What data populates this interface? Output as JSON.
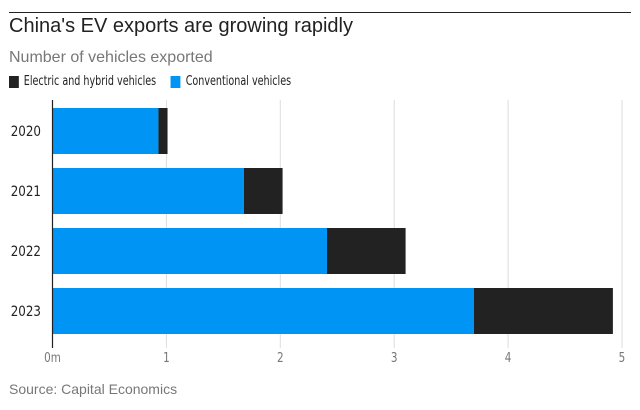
{
  "chart_data": {
    "type": "bar",
    "orientation": "horizontal",
    "stacked": true,
    "title": "China's EV exports are growing rapidly",
    "subtitle": "Number of vehicles exported",
    "categories": [
      "2020",
      "2021",
      "2022",
      "2023"
    ],
    "series": [
      {
        "name": "Conventional vehicles",
        "color": "#0094f5",
        "values": [
          0.93,
          1.68,
          2.41,
          3.7
        ]
      },
      {
        "name": "Electric and hybrid vehicles",
        "color": "#222222",
        "values": [
          0.08,
          0.34,
          0.69,
          1.22
        ]
      }
    ],
    "legend_order": [
      "Electric and hybrid vehicles",
      "Conventional vehicles"
    ],
    "xlim": [
      0,
      5
    ],
    "xticks": [
      "0m",
      "1",
      "2",
      "3",
      "4",
      "5"
    ],
    "grid": true,
    "source": "Source: Capital Economics"
  }
}
